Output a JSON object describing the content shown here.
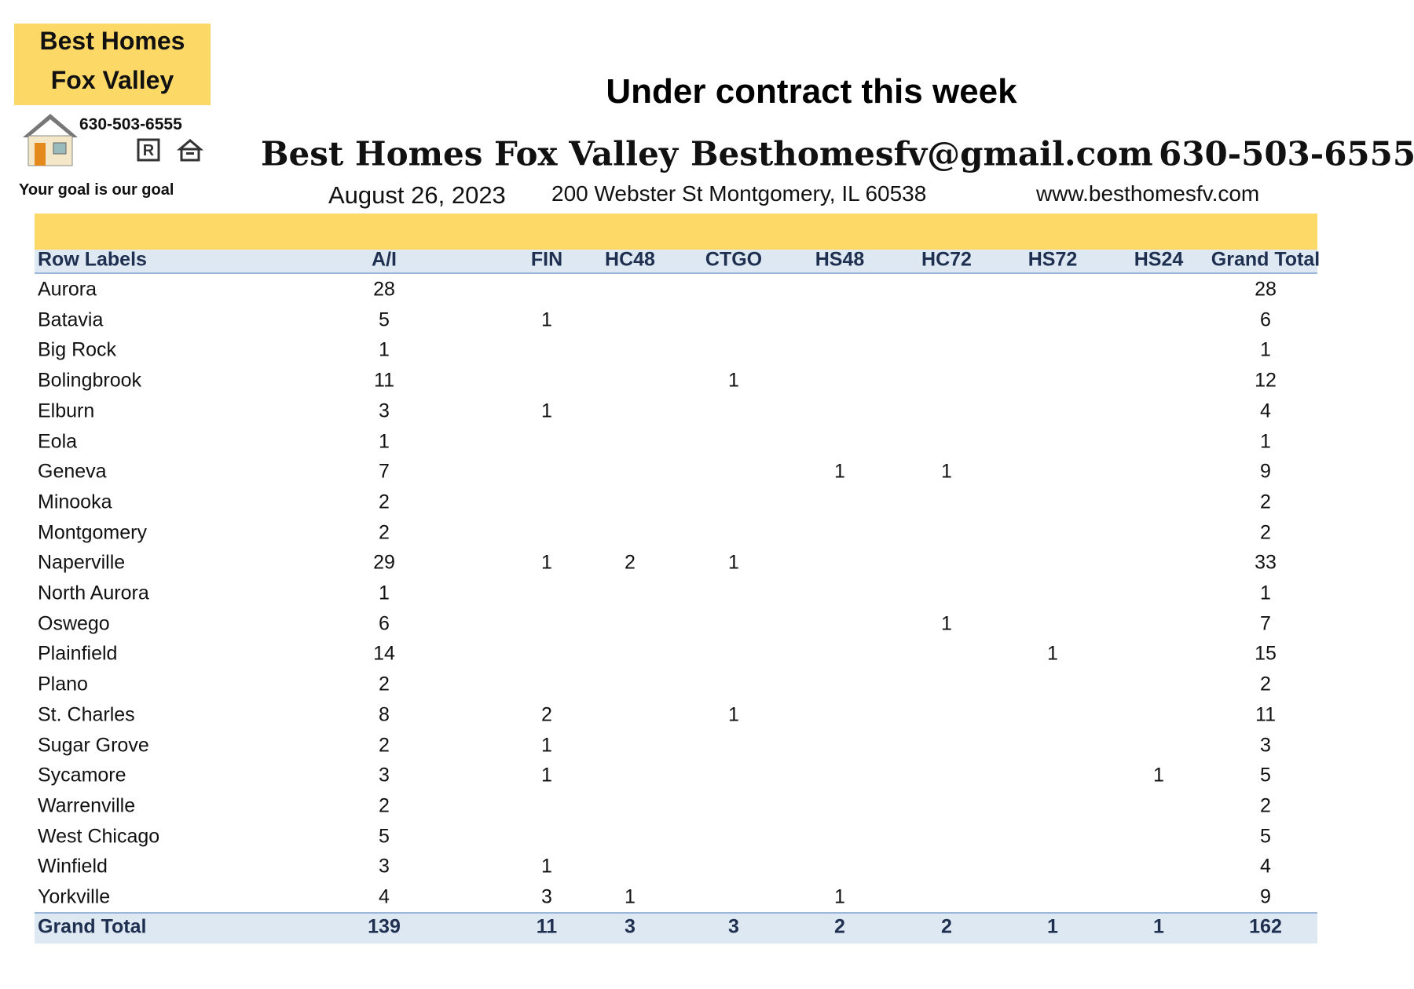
{
  "logo": {
    "line1": "Best Homes",
    "line2": "Fox Valley",
    "phone": "630-503-6555",
    "tagline": "Your goal is our goal"
  },
  "header": {
    "title": "Under contract this week",
    "company": "Best Homes Fox Valley",
    "email": "Besthomesfv@gmail.com",
    "phone": "630-503-6555",
    "date": "August 26, 2023",
    "address": "200 Webster St Montgomery, IL 60538",
    "website": "www.besthomesfv.com"
  },
  "table": {
    "columns": [
      "Row Labels",
      "A/I",
      "FIN",
      "HC48",
      "CTGO",
      "HS48",
      "HC72",
      "HS72",
      "HS24",
      "Grand Total"
    ],
    "rows": [
      [
        "Aurora",
        28,
        null,
        null,
        null,
        null,
        null,
        null,
        null,
        28
      ],
      [
        "Batavia",
        5,
        1,
        null,
        null,
        null,
        null,
        null,
        null,
        6
      ],
      [
        "Big Rock",
        1,
        null,
        null,
        null,
        null,
        null,
        null,
        null,
        1
      ],
      [
        "Bolingbrook",
        11,
        null,
        null,
        1,
        null,
        null,
        null,
        null,
        12
      ],
      [
        "Elburn",
        3,
        1,
        null,
        null,
        null,
        null,
        null,
        null,
        4
      ],
      [
        "Eola",
        1,
        null,
        null,
        null,
        null,
        null,
        null,
        null,
        1
      ],
      [
        "Geneva",
        7,
        null,
        null,
        null,
        1,
        1,
        null,
        null,
        9
      ],
      [
        "Minooka",
        2,
        null,
        null,
        null,
        null,
        null,
        null,
        null,
        2
      ],
      [
        "Montgomery",
        2,
        null,
        null,
        null,
        null,
        null,
        null,
        null,
        2
      ],
      [
        "Naperville",
        29,
        1,
        2,
        1,
        null,
        null,
        null,
        null,
        33
      ],
      [
        "North Aurora",
        1,
        null,
        null,
        null,
        null,
        null,
        null,
        null,
        1
      ],
      [
        "Oswego",
        6,
        null,
        null,
        null,
        null,
        1,
        null,
        null,
        7
      ],
      [
        "Plainfield",
        14,
        null,
        null,
        null,
        null,
        null,
        1,
        null,
        15
      ],
      [
        "Plano",
        2,
        null,
        null,
        null,
        null,
        null,
        null,
        null,
        2
      ],
      [
        "St. Charles",
        8,
        2,
        null,
        1,
        null,
        null,
        null,
        null,
        11
      ],
      [
        "Sugar Grove",
        2,
        1,
        null,
        null,
        null,
        null,
        null,
        null,
        3
      ],
      [
        "Sycamore",
        3,
        1,
        null,
        null,
        null,
        null,
        null,
        1,
        5
      ],
      [
        "Warrenville",
        2,
        null,
        null,
        null,
        null,
        null,
        null,
        null,
        2
      ],
      [
        "West Chicago",
        5,
        null,
        null,
        null,
        null,
        null,
        null,
        null,
        5
      ],
      [
        "Winfield",
        3,
        1,
        null,
        null,
        null,
        null,
        null,
        null,
        4
      ],
      [
        "Yorkville",
        4,
        3,
        1,
        null,
        1,
        null,
        null,
        null,
        9
      ]
    ],
    "total": [
      "Grand Total",
      139,
      11,
      3,
      3,
      2,
      2,
      1,
      1,
      162
    ]
  }
}
